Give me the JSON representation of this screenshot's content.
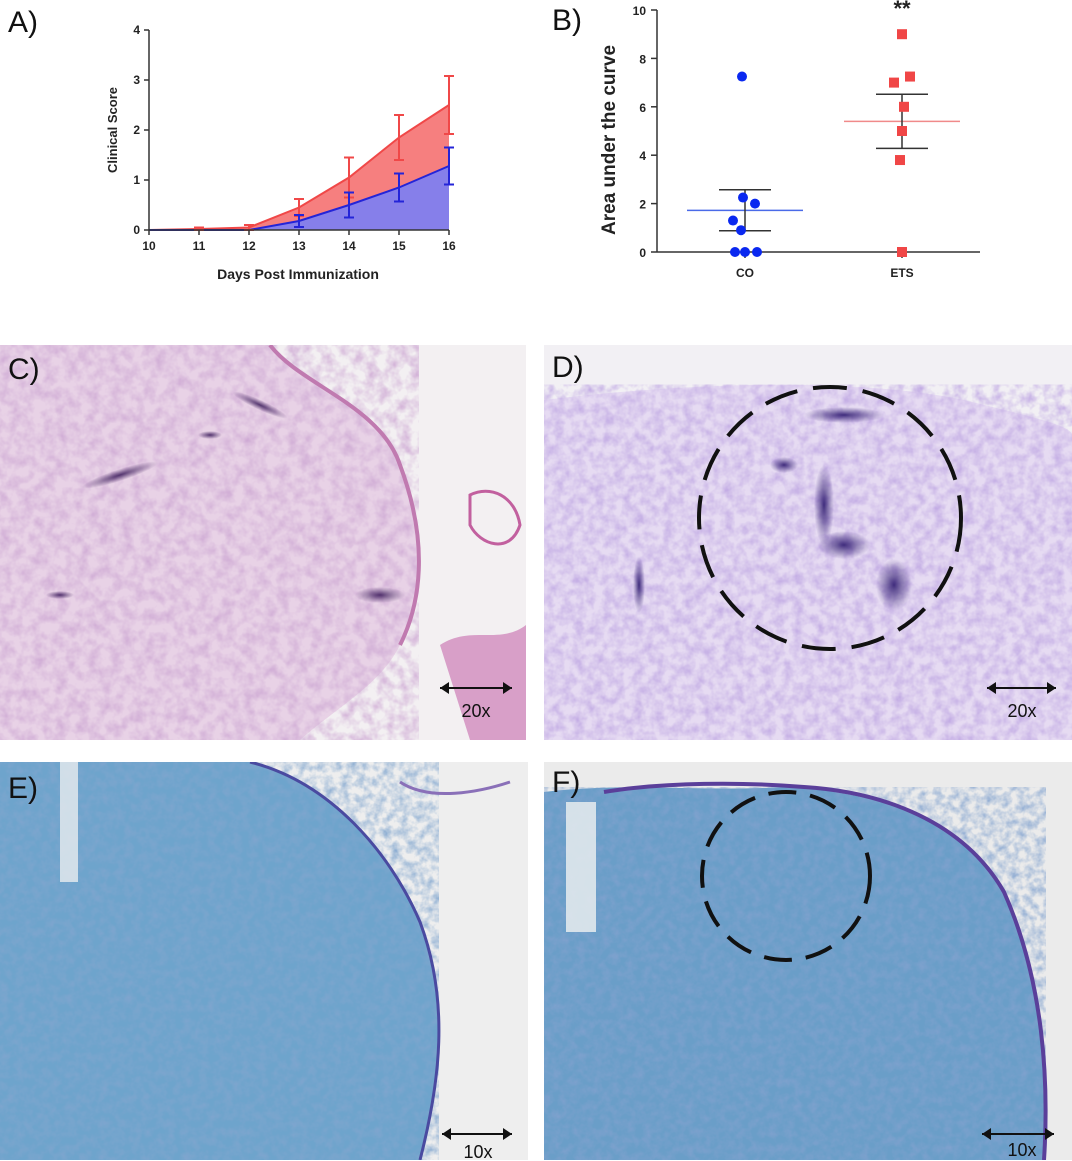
{
  "panels": {
    "a_label": "A)",
    "b_label": "B)",
    "c_label": "C)",
    "d_label": "D)",
    "e_label": "E)",
    "f_label": "F)"
  },
  "colors": {
    "red_series": "#f04848",
    "red_fill": "#f57878",
    "blue_series": "#2424d8",
    "blue_fill": "#8080f0",
    "co_points": "#0a28f0",
    "ets_points": "#f04646",
    "he_background": "#e9d3e6",
    "lfb_background": "#6aa0c8"
  },
  "micrographs": {
    "c_scale": "20x",
    "d_scale": "20x",
    "e_scale": "10x",
    "f_scale": "10x",
    "d_circle": true,
    "f_circle": true
  },
  "chart_data": [
    {
      "type": "area",
      "xlabel": "Days Post Immunization",
      "ylabel": "Clinical Score",
      "xlim": [
        10,
        16
      ],
      "ylim": [
        0,
        4
      ],
      "xticks": [
        10,
        11,
        12,
        13,
        14,
        15,
        16
      ],
      "yticks": [
        0,
        1,
        2,
        3,
        4
      ],
      "x": [
        10,
        11,
        12,
        13,
        14,
        15,
        16
      ],
      "series": [
        {
          "color": "red",
          "values": [
            0,
            0.02,
            0.05,
            0.45,
            1.05,
            1.85,
            2.5
          ],
          "error": [
            0,
            0.03,
            0.05,
            0.17,
            0.4,
            0.45,
            0.58
          ]
        },
        {
          "color": "blue",
          "values": [
            0,
            0.0,
            0.0,
            0.18,
            0.5,
            0.85,
            1.28
          ],
          "error": [
            0,
            0,
            0,
            0.12,
            0.25,
            0.28,
            0.37
          ]
        }
      ]
    },
    {
      "type": "scatter",
      "ylabel": "Area under the curve",
      "categories": [
        "CO",
        "ETS"
      ],
      "ylim": [
        0,
        10
      ],
      "yticks": [
        0,
        2,
        4,
        6,
        8,
        10
      ],
      "annotation": "**",
      "groups": [
        {
          "category": "CO",
          "points": [
            7.25,
            2.25,
            2.0,
            1.3,
            0.9,
            0,
            0,
            0
          ],
          "mean": 1.72,
          "sem_low": 0.88,
          "sem_high": 2.57
        },
        {
          "category": "ETS",
          "points": [
            9.0,
            7.25,
            7.0,
            6.0,
            5.0,
            3.8,
            0.0
          ],
          "mean": 5.4,
          "sem_low": 4.28,
          "sem_high": 6.52
        }
      ]
    }
  ]
}
